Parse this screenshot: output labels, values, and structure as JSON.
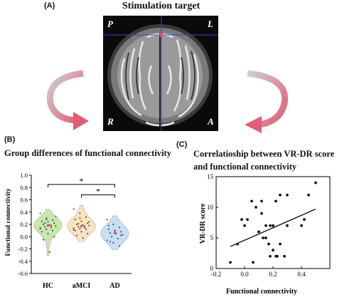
{
  "panels": {
    "a": {
      "letter": "(A)",
      "title": "Stimulation target",
      "corner_labels": {
        "top_left": "P",
        "top_right": "L",
        "bottom_left": "R",
        "bottom_right": "A"
      }
    },
    "b": {
      "letter": "(B)",
      "title": "Group differences of functional connectivity"
    },
    "c": {
      "letter": "(C)",
      "title_line1": "Correlatioship between VR-DR score",
      "title_line2": "and functional connectivity"
    }
  },
  "colors": {
    "arrow": "#d9607a",
    "hc": "#c8e6a8",
    "amci": "#fbe3ba",
    "ad": "#c7ddf2",
    "crosshair": "#2f49c8",
    "target": "#e8507a"
  },
  "chart_data": [
    {
      "type": "violin",
      "categories": [
        "HC",
        "aMCI",
        "AD"
      ],
      "ylabel": "Functional connectivity",
      "ylim": [
        -0.6,
        1.0
      ],
      "yticks": [
        "1.0",
        "0.8",
        "0.6",
        "0.4",
        "0.2",
        "0.0",
        "-0.2",
        "-0.4",
        "-0.6"
      ],
      "significance": [
        {
          "from": "HC",
          "to": "AD",
          "label": "*"
        },
        {
          "from": "aMCI",
          "to": "AD",
          "label": "*"
        }
      ],
      "series": [
        {
          "category": "HC",
          "median": 0.18,
          "values": [
            0.38,
            0.3,
            0.27,
            0.25,
            0.24,
            0.22,
            0.2,
            0.19,
            0.17,
            0.16,
            0.15,
            0.14,
            0.12,
            0.1,
            0.08,
            0.05,
            0.0,
            -0.05,
            -0.25,
            0.33,
            0.22,
            0.18,
            0.13,
            0.28
          ]
        },
        {
          "category": "aMCI",
          "median": 0.17,
          "values": [
            0.45,
            0.38,
            0.32,
            0.28,
            0.25,
            0.22,
            0.2,
            0.19,
            0.18,
            0.16,
            0.15,
            0.14,
            0.13,
            0.12,
            0.1,
            0.08,
            0.05,
            0.02,
            -0.02,
            0.24,
            0.21,
            0.17,
            0.11,
            0.3
          ]
        },
        {
          "category": "AD",
          "median": 0.06,
          "values": [
            0.28,
            0.2,
            0.15,
            0.12,
            0.1,
            0.08,
            0.06,
            0.05,
            0.03,
            0.0,
            -0.03,
            -0.06,
            -0.1,
            -0.15,
            0.18,
            0.09,
            0.02,
            -0.08
          ]
        }
      ]
    },
    {
      "type": "scatter",
      "xlabel": "Functional connectivity",
      "ylabel": "VR-DR score",
      "xlim": [
        -0.2,
        0.6
      ],
      "ylim": [
        0,
        15
      ],
      "xticks": [
        "-0.2",
        "0.0",
        "0.2",
        "0.4"
      ],
      "yticks": [
        "0",
        "5",
        "10",
        "15"
      ],
      "x": [
        -0.1,
        -0.05,
        -0.02,
        0.0,
        0.02,
        0.05,
        0.06,
        0.08,
        0.1,
        0.1,
        0.12,
        0.12,
        0.13,
        0.15,
        0.15,
        0.17,
        0.18,
        0.18,
        0.2,
        0.2,
        0.22,
        0.22,
        0.23,
        0.25,
        0.25,
        0.28,
        0.3,
        0.3,
        0.4,
        0.42,
        0.45,
        0.5
      ],
      "y": [
        1,
        4,
        8,
        7,
        8,
        11,
        1,
        10,
        6,
        6,
        9,
        11,
        5,
        7,
        5,
        4,
        2,
        7,
        7,
        3,
        2,
        11,
        2,
        12,
        4,
        2,
        7,
        12,
        7,
        8,
        12,
        14
      ],
      "fit_line": {
        "x": [
          -0.1,
          0.5
        ],
        "y": [
          3.6,
          9.7
        ]
      }
    }
  ]
}
